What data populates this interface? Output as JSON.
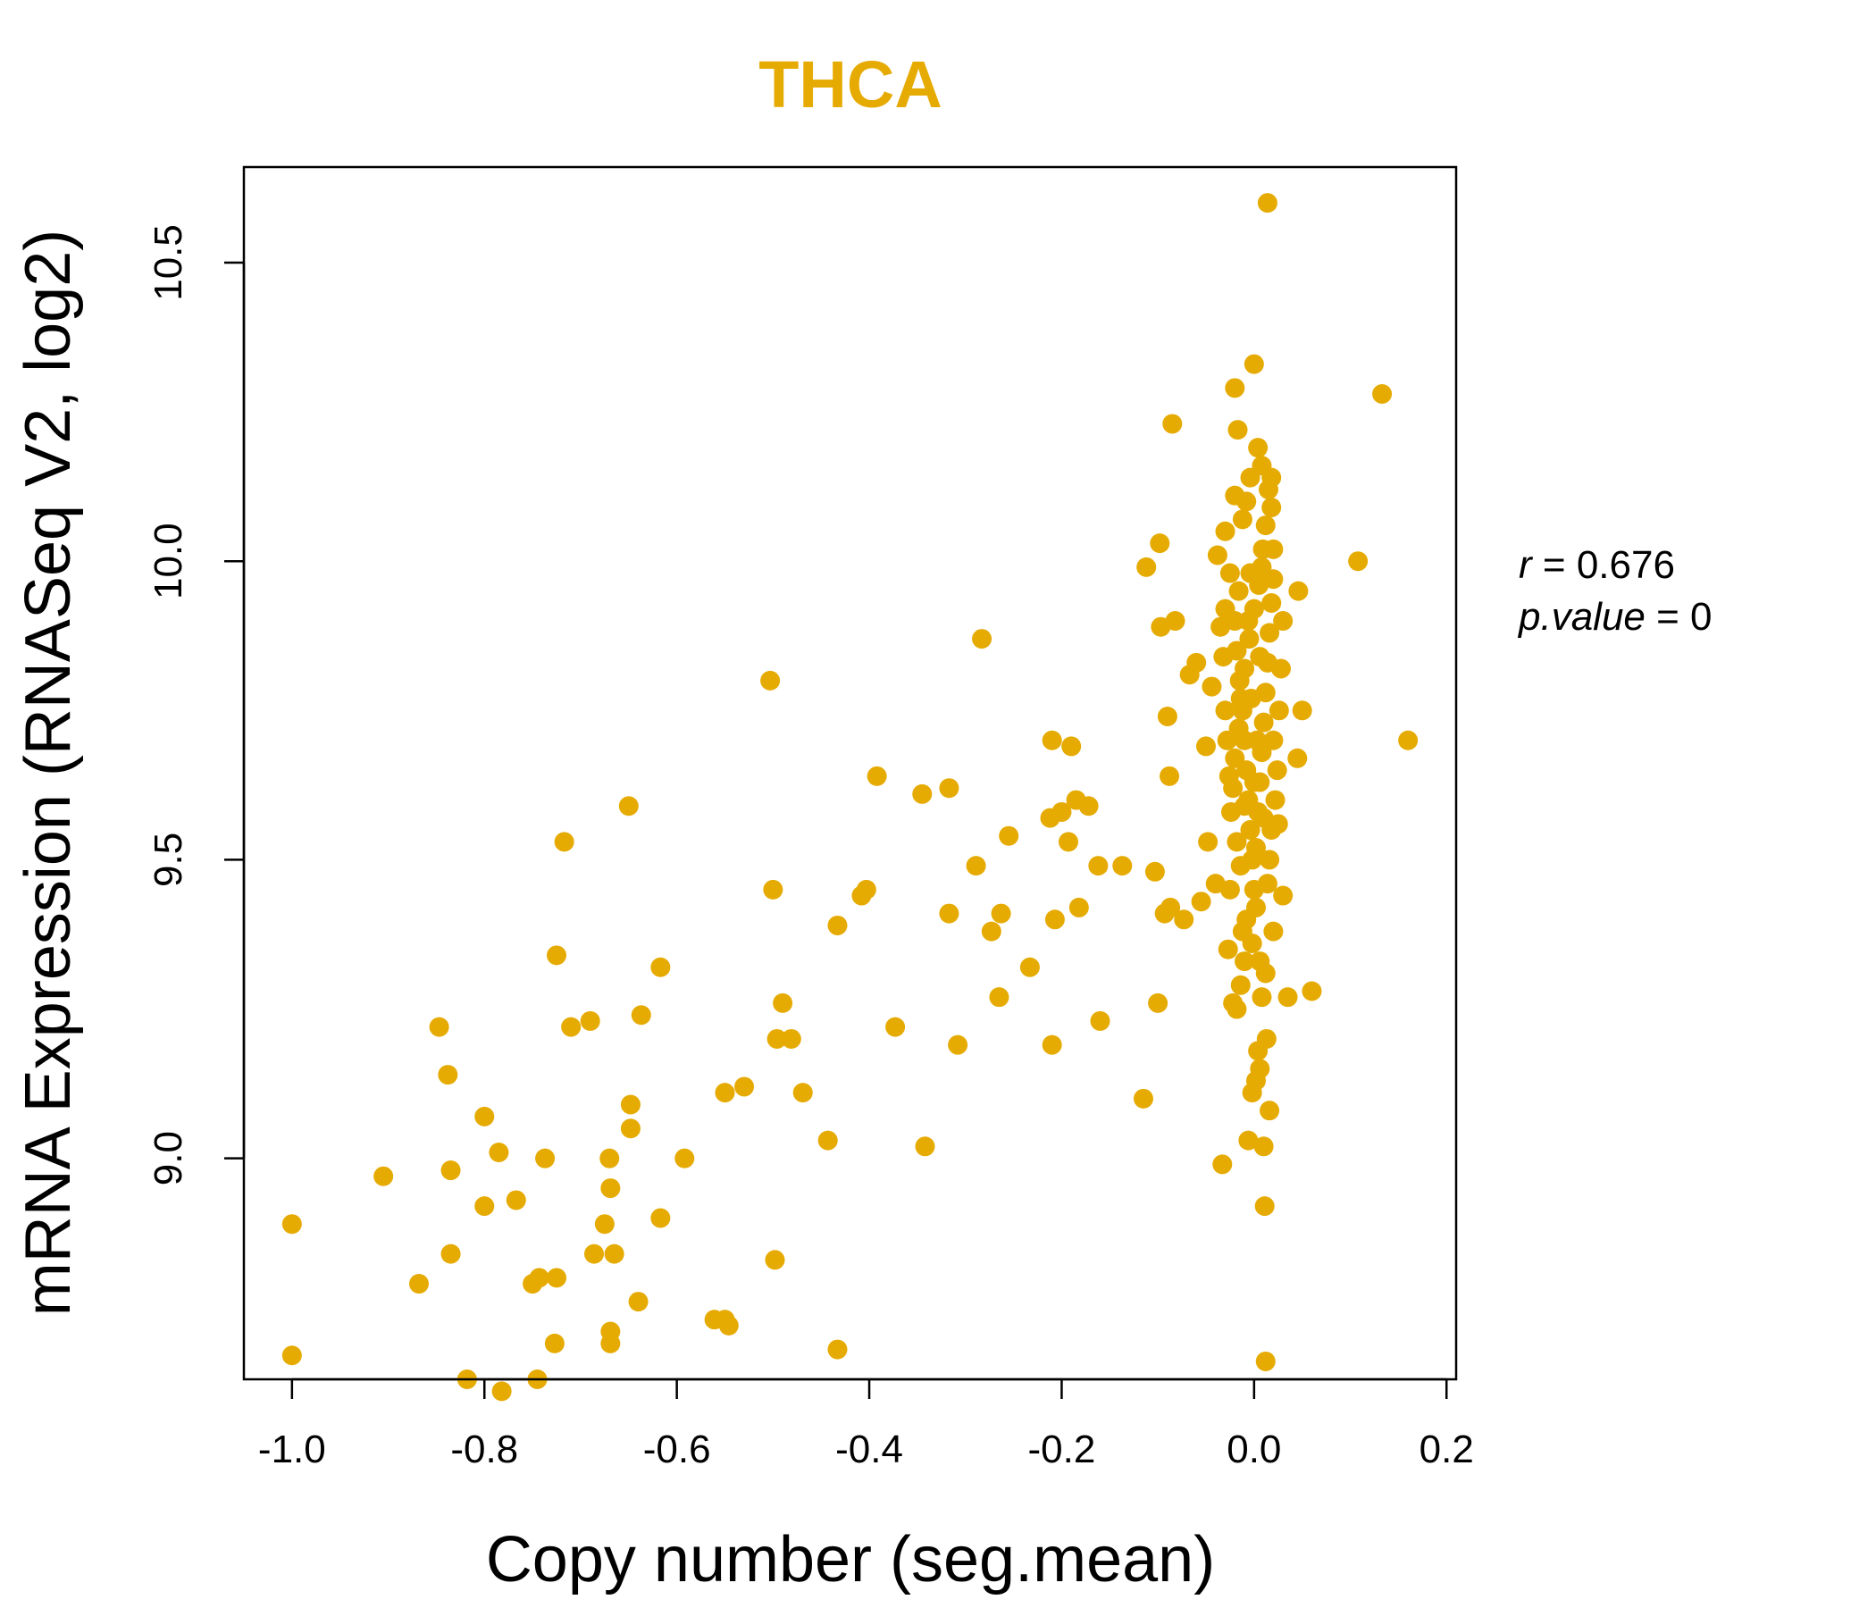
{
  "colors": {
    "points": "#E6AB02",
    "title": "#E6AB02",
    "axis": "#000000"
  },
  "chart_data": {
    "type": "scatter",
    "title": "THCA",
    "xlabel": "Copy number (seg.mean)",
    "ylabel": "mRNA Expression (RNASeq V2, log2)",
    "xlim": [
      -1.05,
      0.21
    ],
    "ylim": [
      8.63,
      10.66
    ],
    "x_ticks": [
      -1.0,
      -0.8,
      -0.6,
      -0.4,
      -0.2,
      0.0,
      0.2
    ],
    "x_tick_labels": [
      "-1.0",
      "-0.8",
      "-0.6",
      "-0.4",
      "-0.2",
      "0.0",
      "0.2"
    ],
    "y_ticks": [
      9.0,
      9.5,
      10.0,
      10.5
    ],
    "y_tick_labels": [
      "9.0",
      "9.5",
      "10.0",
      "10.5"
    ],
    "grid": false,
    "annotations": {
      "r_label": "r",
      "r_value": "0.676",
      "p_label": "p.value",
      "p_value": "0"
    },
    "points": [
      [
        -1.0,
        8.89
      ],
      [
        -1.0,
        8.67
      ],
      [
        -0.905,
        8.97
      ],
      [
        -0.868,
        8.79
      ],
      [
        -0.847,
        9.22
      ],
      [
        -0.838,
        9.14
      ],
      [
        -0.835,
        8.98
      ],
      [
        -0.835,
        8.84
      ],
      [
        -0.818,
        8.63
      ],
      [
        -0.8,
        9.07
      ],
      [
        -0.8,
        8.92
      ],
      [
        -0.785,
        9.01
      ],
      [
        -0.782,
        8.61
      ],
      [
        -0.767,
        8.93
      ],
      [
        -0.75,
        8.79
      ],
      [
        -0.745,
        8.63
      ],
      [
        -0.743,
        8.8
      ],
      [
        -0.737,
        9.0
      ],
      [
        -0.727,
        8.69
      ],
      [
        -0.725,
        8.8
      ],
      [
        -0.725,
        9.34
      ],
      [
        -0.717,
        9.53
      ],
      [
        -0.71,
        9.22
      ],
      [
        -0.69,
        9.23
      ],
      [
        -0.686,
        8.84
      ],
      [
        -0.675,
        8.89
      ],
      [
        -0.67,
        9.0
      ],
      [
        -0.669,
        8.95
      ],
      [
        -0.669,
        8.71
      ],
      [
        -0.669,
        8.69
      ],
      [
        -0.665,
        8.84
      ],
      [
        -0.65,
        9.59
      ],
      [
        -0.648,
        9.09
      ],
      [
        -0.648,
        9.05
      ],
      [
        -0.64,
        8.76
      ],
      [
        -0.637,
        9.24
      ],
      [
        -0.617,
        9.32
      ],
      [
        -0.617,
        8.9
      ],
      [
        -0.592,
        9.0
      ],
      [
        -0.561,
        8.73
      ],
      [
        -0.55,
        9.11
      ],
      [
        -0.55,
        8.73
      ],
      [
        -0.546,
        8.72
      ],
      [
        -0.53,
        9.12
      ],
      [
        -0.503,
        9.8
      ],
      [
        -0.5,
        9.45
      ],
      [
        -0.498,
        8.83
      ],
      [
        -0.496,
        9.2
      ],
      [
        -0.49,
        9.26
      ],
      [
        -0.481,
        9.2
      ],
      [
        -0.469,
        9.11
      ],
      [
        -0.443,
        9.03
      ],
      [
        -0.433,
        9.39
      ],
      [
        -0.433,
        8.68
      ],
      [
        -0.408,
        9.44
      ],
      [
        -0.403,
        9.45
      ],
      [
        -0.392,
        9.64
      ],
      [
        -0.373,
        9.22
      ],
      [
        -0.345,
        9.61
      ],
      [
        -0.342,
        9.02
      ],
      [
        -0.317,
        9.62
      ],
      [
        -0.317,
        9.41
      ],
      [
        -0.308,
        9.19
      ],
      [
        -0.289,
        9.49
      ],
      [
        -0.283,
        9.87
      ],
      [
        -0.273,
        9.38
      ],
      [
        -0.265,
        9.27
      ],
      [
        -0.263,
        9.41
      ],
      [
        -0.255,
        9.54
      ],
      [
        -0.233,
        9.32
      ],
      [
        -0.212,
        9.57
      ],
      [
        -0.21,
        9.7
      ],
      [
        -0.21,
        9.19
      ],
      [
        -0.207,
        9.4
      ],
      [
        -0.2,
        9.58
      ],
      [
        -0.193,
        9.53
      ],
      [
        -0.19,
        9.69
      ],
      [
        -0.185,
        9.6
      ],
      [
        -0.182,
        9.42
      ],
      [
        -0.172,
        9.59
      ],
      [
        -0.162,
        9.49
      ],
      [
        -0.16,
        9.23
      ],
      [
        -0.137,
        9.49
      ],
      [
        -0.115,
        9.1
      ],
      [
        -0.112,
        9.99
      ],
      [
        -0.103,
        9.48
      ],
      [
        -0.1,
        9.26
      ],
      [
        -0.098,
        10.03
      ],
      [
        -0.097,
        9.89
      ],
      [
        -0.093,
        9.41
      ],
      [
        -0.09,
        9.74
      ],
      [
        -0.088,
        9.64
      ],
      [
        -0.087,
        9.42
      ],
      [
        -0.085,
        10.23
      ],
      [
        -0.082,
        9.9
      ],
      [
        -0.073,
        9.4
      ],
      [
        -0.067,
        9.81
      ],
      [
        -0.06,
        9.83
      ],
      [
        -0.055,
        9.43
      ],
      [
        -0.05,
        9.69
      ],
      [
        -0.048,
        9.53
      ],
      [
        -0.044,
        9.79
      ],
      [
        -0.04,
        9.46
      ],
      [
        -0.038,
        10.01
      ],
      [
        -0.035,
        9.89
      ],
      [
        -0.033,
        8.99
      ],
      [
        -0.03,
        9.92
      ],
      [
        -0.027,
        9.35
      ],
      [
        -0.025,
        9.45
      ],
      [
        -0.022,
        9.26
      ],
      [
        -0.02,
        10.29
      ],
      [
        -0.018,
        9.25
      ],
      [
        -0.017,
        10.22
      ],
      [
        -0.014,
        9.29
      ],
      [
        -0.012,
        9.38
      ],
      [
        -0.01,
        9.33
      ],
      [
        -0.008,
        9.4
      ],
      [
        -0.006,
        9.03
      ],
      [
        -0.004,
        9.98
      ],
      [
        -0.002,
        9.11
      ],
      [
        0.0,
        10.33
      ],
      [
        0.002,
        9.13
      ],
      [
        0.004,
        9.18
      ],
      [
        0.006,
        9.15
      ],
      [
        0.008,
        9.27
      ],
      [
        0.01,
        9.02
      ],
      [
        0.011,
        8.92
      ],
      [
        0.012,
        8.66
      ],
      [
        0.013,
        9.2
      ],
      [
        0.014,
        10.6
      ],
      [
        0.016,
        9.08
      ],
      [
        0.018,
        10.09
      ],
      [
        0.02,
        9.38
      ],
      [
        0.025,
        9.56
      ],
      [
        0.03,
        9.44
      ],
      [
        0.035,
        9.27
      ],
      [
        0.045,
        9.67
      ],
      [
        0.046,
        9.95
      ],
      [
        0.05,
        9.75
      ],
      [
        0.06,
        9.28
      ],
      [
        0.108,
        10.0
      ],
      [
        0.133,
        10.28
      ],
      [
        0.16,
        9.7
      ],
      [
        -0.03,
        10.05
      ],
      [
        -0.025,
        9.98
      ],
      [
        -0.02,
        9.9
      ],
      [
        -0.018,
        9.85
      ],
      [
        -0.015,
        9.8
      ],
      [
        -0.012,
        9.75
      ],
      [
        -0.01,
        9.7
      ],
      [
        -0.008,
        9.65
      ],
      [
        -0.006,
        9.6
      ],
      [
        -0.004,
        9.55
      ],
      [
        -0.002,
        9.5
      ],
      [
        0.0,
        9.45
      ],
      [
        0.002,
        9.52
      ],
      [
        0.004,
        9.58
      ],
      [
        0.006,
        9.63
      ],
      [
        0.008,
        9.68
      ],
      [
        0.01,
        9.73
      ],
      [
        0.012,
        9.78
      ],
      [
        0.014,
        9.83
      ],
      [
        0.016,
        9.88
      ],
      [
        0.018,
        9.93
      ],
      [
        0.02,
        9.97
      ],
      [
        -0.022,
        9.62
      ],
      [
        -0.02,
        9.67
      ],
      [
        -0.016,
        9.72
      ],
      [
        -0.014,
        9.77
      ],
      [
        -0.01,
        9.82
      ],
      [
        -0.005,
        9.87
      ],
      [
        0.0,
        9.92
      ],
      [
        0.005,
        9.96
      ],
      [
        0.009,
        10.02
      ],
      [
        0.012,
        10.06
      ],
      [
        0.015,
        10.12
      ],
      [
        0.008,
        10.16
      ],
      [
        0.004,
        10.19
      ],
      [
        -0.004,
        10.14
      ],
      [
        -0.008,
        10.1
      ],
      [
        -0.012,
        10.07
      ],
      [
        0.022,
        9.6
      ],
      [
        0.024,
        9.65
      ],
      [
        0.02,
        9.7
      ],
      [
        0.018,
        9.55
      ],
      [
        0.016,
        9.5
      ],
      [
        0.014,
        9.46
      ],
      [
        -0.024,
        9.58
      ],
      [
        -0.026,
        9.64
      ],
      [
        -0.028,
        9.7
      ],
      [
        -0.018,
        9.53
      ],
      [
        -0.014,
        9.49
      ],
      [
        0.026,
        9.75
      ],
      [
        0.028,
        9.82
      ],
      [
        0.03,
        9.9
      ],
      [
        -0.03,
        9.75
      ],
      [
        -0.032,
        9.84
      ],
      [
        0.0,
        9.63
      ],
      [
        0.003,
        9.7
      ],
      [
        -0.003,
        9.77
      ],
      [
        0.006,
        9.84
      ],
      [
        -0.006,
        9.9
      ],
      [
        0.01,
        9.57
      ],
      [
        -0.01,
        9.59
      ],
      [
        0.002,
        9.42
      ],
      [
        -0.002,
        9.36
      ],
      [
        0.006,
        9.33
      ],
      [
        0.012,
        9.31
      ],
      [
        -0.016,
        9.95
      ],
      [
        0.018,
        10.14
      ],
      [
        0.02,
        10.02
      ],
      [
        -0.02,
        10.11
      ],
      [
        0.008,
        9.99
      ]
    ]
  }
}
